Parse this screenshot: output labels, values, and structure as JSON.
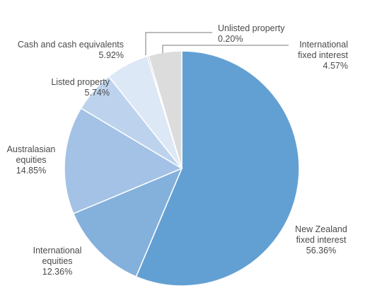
{
  "chart_data": {
    "type": "pie",
    "slices": [
      {
        "label": [
          "New Zealand",
          "fixed interest"
        ],
        "value_text": "56.36%",
        "value": 56.36,
        "color": "#62a0d3"
      },
      {
        "label": [
          "International",
          "equities"
        ],
        "value_text": "12.36%",
        "value": 12.36,
        "color": "#84b0dc"
      },
      {
        "label": [
          "Australasian",
          "equities"
        ],
        "value_text": "14.85%",
        "value": 14.85,
        "color": "#a3c2e6"
      },
      {
        "label": [
          "Listed property"
        ],
        "value_text": "5.74%",
        "value": 5.74,
        "color": "#bdd3ed"
      },
      {
        "label": [
          "Cash and cash equivalents"
        ],
        "value_text": "5.92%",
        "value": 5.92,
        "color": "#dde8f6"
      },
      {
        "label": [
          "Unlisted property"
        ],
        "value_text": "0.20%",
        "value": 0.2,
        "color": "#9a9a9a"
      },
      {
        "label": [
          "International",
          "fixed interest"
        ],
        "value_text": "4.57%",
        "value": 4.57,
        "color": "#dcdcdc"
      }
    ]
  }
}
